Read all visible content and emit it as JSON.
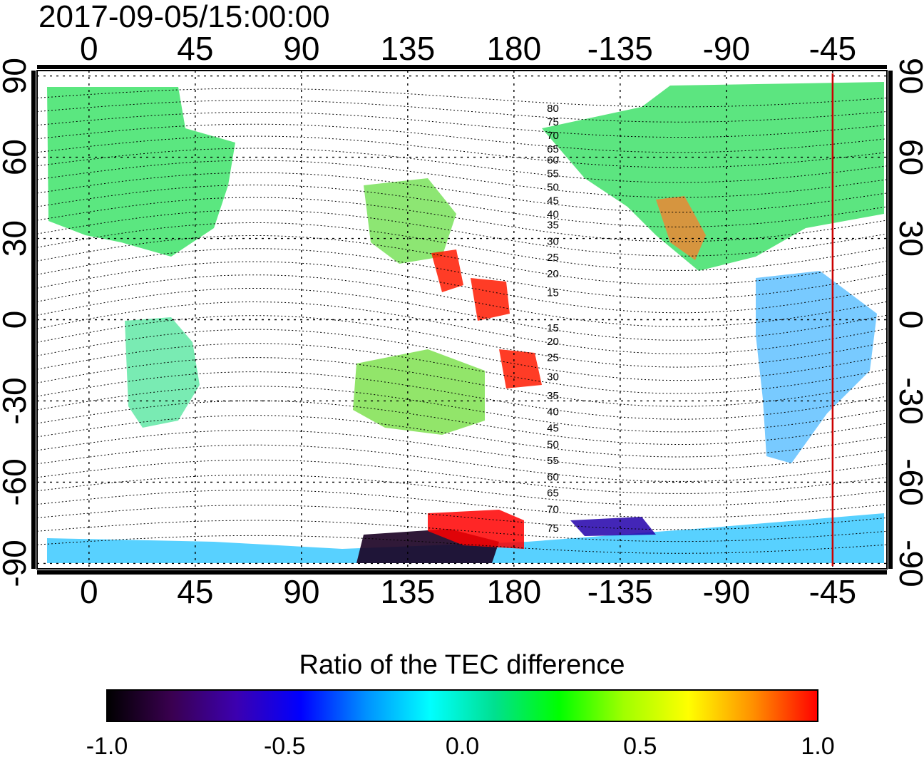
{
  "title": "2017-09-05/15:00:00",
  "map": {
    "x_ticks": [
      "0",
      "45",
      "90",
      "135",
      "180",
      "-135",
      "-90",
      "-45"
    ],
    "x_tick_lons": [
      0,
      45,
      90,
      135,
      180,
      225,
      270,
      315
    ],
    "y_ticks": [
      "90",
      "60",
      "30",
      "0",
      "-30",
      "-60",
      "-90"
    ],
    "y_tick_lats": [
      90,
      60,
      30,
      0,
      -30,
      -60,
      -90
    ],
    "lon_range": [
      -22,
      338
    ],
    "lat_range": [
      -92,
      92
    ],
    "marker_lon": -45,
    "marker_color": "#cc0000",
    "contour_labels_north": [
      "80",
      "75",
      "70",
      "65",
      "60",
      "55",
      "50",
      "45",
      "40",
      "35",
      "30",
      "25",
      "20",
      "15"
    ],
    "contour_labels_north_lats": [
      78,
      73,
      68,
      63,
      59,
      54,
      49,
      44,
      39,
      35,
      29,
      23,
      17,
      10
    ],
    "contour_labels_south": [
      "15",
      "20",
      "25",
      "30",
      "35",
      "40",
      "45",
      "50",
      "55",
      "60",
      "65",
      "70",
      "75"
    ],
    "contour_labels_south_lats": [
      -3,
      -8,
      -14,
      -21,
      -28,
      -34,
      -40,
      -46,
      -52,
      -58,
      -64,
      -70,
      -77
    ]
  },
  "colorbar": {
    "title": "Ratio of the TEC difference",
    "ticks": [
      "-1.0",
      "-0.5",
      "0.0",
      "0.5",
      "1.0"
    ],
    "tick_values": [
      -1.0,
      -0.5,
      0.0,
      0.5,
      1.0
    ],
    "range": [
      -1.0,
      1.0
    ],
    "colors": [
      "#000000",
      "#3a0050",
      "#3c00b0",
      "#0000ff",
      "#0090ff",
      "#00ffff",
      "#00e090",
      "#00ff00",
      "#a0ff00",
      "#ffff00",
      "#ff9000",
      "#ff0000"
    ]
  }
}
